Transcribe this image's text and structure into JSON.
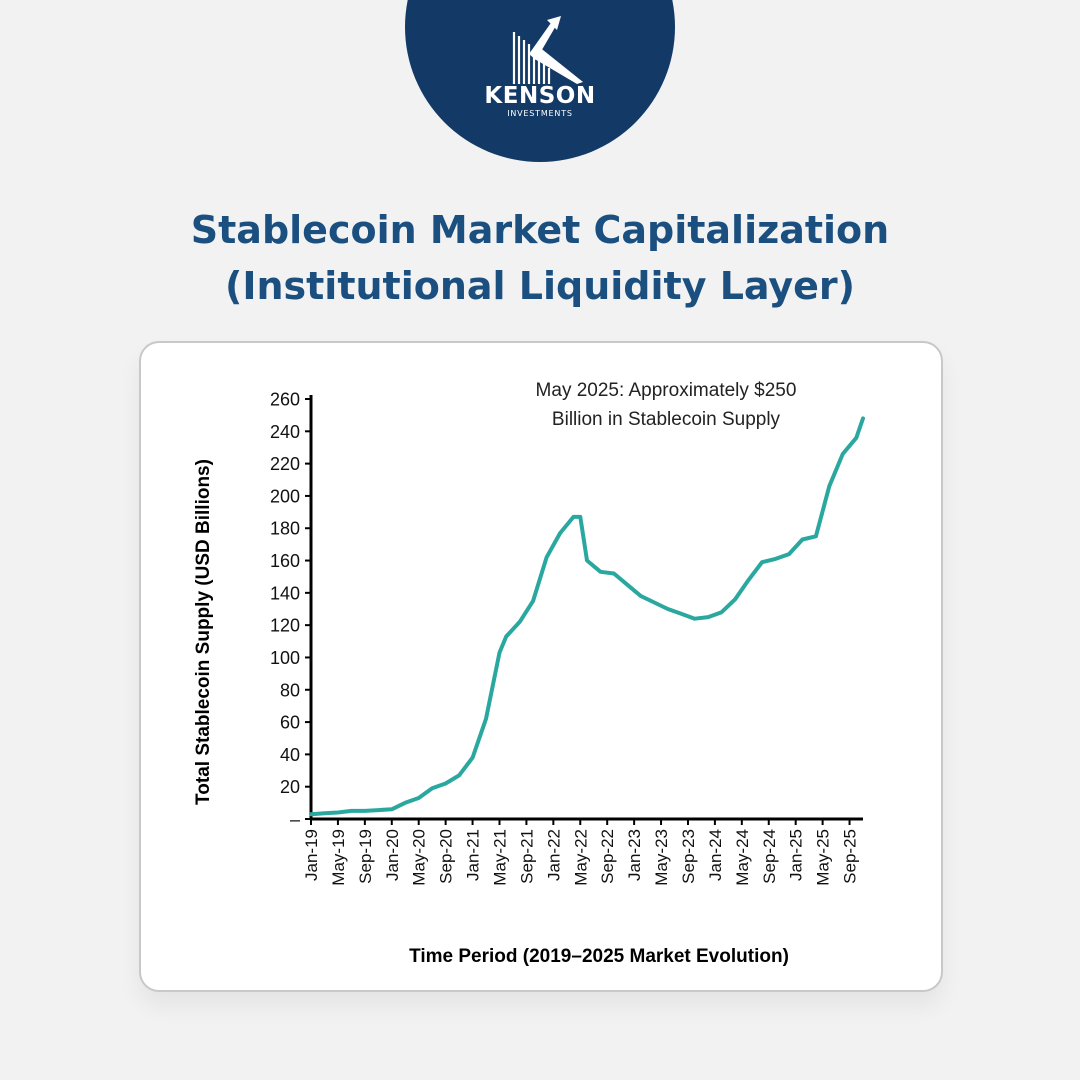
{
  "brand": {
    "name": "KENSON",
    "subtitle": "INVESTMENTS"
  },
  "title": {
    "line1": "Stablecoin Market Capitalization",
    "line2": "(Institutional Liquidity Layer)"
  },
  "colors": {
    "background": "#f2f2f2",
    "logo_circle": "#133a66",
    "title": "#1a4f80",
    "line": "#2aa8a0"
  },
  "chart_data": {
    "type": "line",
    "xlabel": "Time Period (2019–2025 Market Evolution)",
    "ylabel": "Total Stablecoin Supply (USD Billions)",
    "ylim": [
      0,
      260
    ],
    "y_ticks": [
      0,
      20,
      40,
      60,
      80,
      100,
      120,
      140,
      160,
      180,
      200,
      220,
      240,
      260
    ],
    "y_tick_labels": [
      "–",
      "20",
      "40",
      "60",
      "80",
      "100",
      "120",
      "140",
      "160",
      "180",
      "200",
      "220",
      "240",
      "260"
    ],
    "x_tick_labels": [
      "Jan-19",
      "May-19",
      "Sep-19",
      "Jan-20",
      "May-20",
      "Sep-20",
      "Jan-21",
      "May-21",
      "Sep-21",
      "Jan-22",
      "May-22",
      "Sep-22",
      "Jan-23",
      "May-23",
      "Sep-23",
      "Jan-24",
      "May-24",
      "Sep-24",
      "Jan-25",
      "May-25",
      "Sep-25"
    ],
    "x_tick_dates": [
      "2019-01",
      "2019-05",
      "2019-09",
      "2020-01",
      "2020-05",
      "2020-09",
      "2021-01",
      "2021-05",
      "2021-09",
      "2022-01",
      "2022-05",
      "2022-09",
      "2023-01",
      "2023-05",
      "2023-09",
      "2024-01",
      "2024-05",
      "2024-09",
      "2025-01",
      "2025-05",
      "2025-09"
    ],
    "grid": false,
    "annotation": {
      "line1": "May 2025: Approximately $250",
      "line2": "Billion in Stablecoin Supply"
    },
    "series": [
      {
        "x": [
          "2019-01",
          "2019-03",
          "2019-05",
          "2019-07",
          "2019-09",
          "2019-11",
          "2020-01",
          "2020-03",
          "2020-05",
          "2020-07",
          "2020-09",
          "2020-11",
          "2021-01",
          "2021-03",
          "2021-05",
          "2021-06",
          "2021-08",
          "2021-10",
          "2021-12",
          "2022-02",
          "2022-04",
          "2022-05",
          "2022-06",
          "2022-08",
          "2022-10",
          "2022-12",
          "2023-02",
          "2023-04",
          "2023-06",
          "2023-08",
          "2023-10",
          "2023-12",
          "2024-02",
          "2024-04",
          "2024-06",
          "2024-08",
          "2024-10",
          "2024-12",
          "2025-02",
          "2025-04",
          "2025-06",
          "2025-08",
          "2025-10",
          "2025-11"
        ],
        "values": [
          3,
          3.5,
          4,
          5,
          5,
          5.5,
          6,
          10,
          13,
          19,
          22,
          27,
          38,
          62,
          103,
          113,
          122,
          135,
          162,
          177,
          187,
          187,
          160,
          153,
          152,
          145,
          138,
          134,
          130,
          127,
          124,
          125,
          128,
          136,
          148,
          159,
          161,
          164,
          173,
          175,
          206,
          226,
          236,
          248
        ]
      }
    ]
  }
}
